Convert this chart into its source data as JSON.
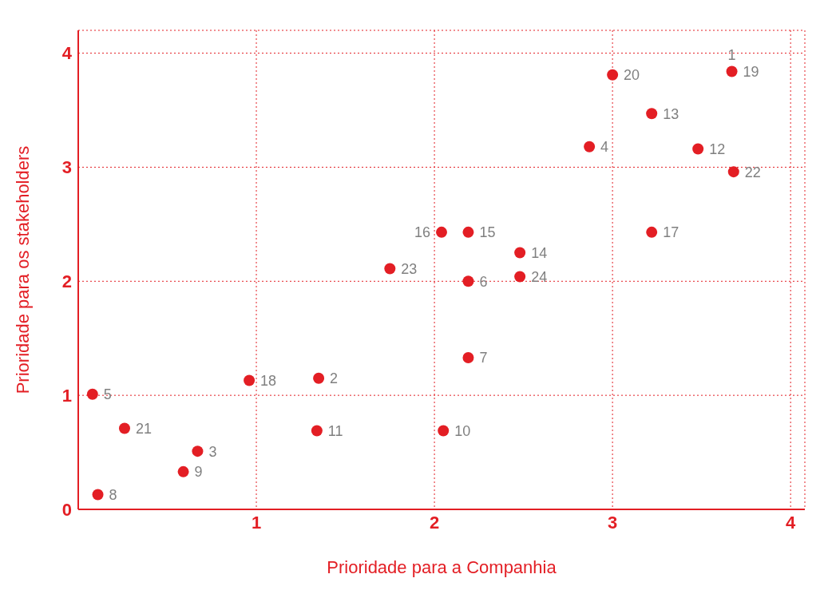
{
  "chart_data": {
    "type": "scatter",
    "xlabel": "Prioridade para a Companhia",
    "ylabel": "Prioridade para os stakeholders",
    "series": [
      {
        "color": "#e31e24",
        "x": [
          null,
          1.35,
          0.67,
          2.87,
          0.08,
          2.19,
          2.19,
          0.11,
          0.59,
          2.05,
          1.34,
          3.48,
          3.22,
          2.48,
          2.19,
          2.04,
          3.22,
          0.96,
          3.67,
          3.0,
          0.26,
          3.68,
          1.75,
          2.48
        ],
        "values": [
          null,
          1.15,
          0.51,
          3.18,
          1.01,
          2.0,
          1.33,
          0.13,
          0.33,
          0.69,
          0.69,
          3.16,
          3.47,
          2.25,
          2.43,
          2.43,
          2.43,
          1.13,
          3.84,
          3.81,
          0.71,
          2.96,
          2.11,
          2.04
        ]
      }
    ],
    "annotations": [
      {
        "text": "1",
        "x": 3.67,
        "y": 3.84
      },
      {
        "text": "2",
        "x": 1.35,
        "y": 1.15
      },
      {
        "text": "3",
        "x": 0.67,
        "y": 0.51
      },
      {
        "text": "4",
        "x": 2.87,
        "y": 3.18
      },
      {
        "text": "5",
        "x": 0.08,
        "y": 1.01
      },
      {
        "text": "6",
        "x": 2.19,
        "y": 2.0
      },
      {
        "text": "7",
        "x": 2.19,
        "y": 1.33
      },
      {
        "text": "8",
        "x": 0.11,
        "y": 0.13
      },
      {
        "text": "9",
        "x": 0.59,
        "y": 0.33
      },
      {
        "text": "10",
        "x": 2.05,
        "y": 0.69
      },
      {
        "text": "11",
        "x": 1.34,
        "y": 0.69
      },
      {
        "text": "12",
        "x": 3.48,
        "y": 3.16
      },
      {
        "text": "13",
        "x": 3.22,
        "y": 3.47
      },
      {
        "text": "14",
        "x": 2.48,
        "y": 2.25
      },
      {
        "text": "15",
        "x": 2.19,
        "y": 2.43
      },
      {
        "text": "16",
        "x": 2.04,
        "y": 2.43
      },
      {
        "text": "17",
        "x": 3.22,
        "y": 2.43
      },
      {
        "text": "18",
        "x": 0.96,
        "y": 1.13
      },
      {
        "text": "19",
        "x": 3.67,
        "y": 3.84
      },
      {
        "text": "20",
        "x": 3.0,
        "y": 3.81
      },
      {
        "text": "21",
        "x": 0.26,
        "y": 0.71
      },
      {
        "text": "22",
        "x": 3.68,
        "y": 2.96
      },
      {
        "text": "23",
        "x": 1.75,
        "y": 2.11
      },
      {
        "text": "24",
        "x": 2.48,
        "y": 2.04
      }
    ],
    "xlim": [
      0,
      4.08
    ],
    "ylim": [
      0,
      4.2
    ],
    "xticks": [
      {
        "value": 0,
        "label": null
      },
      1,
      2,
      3,
      4
    ],
    "yticks": [
      0,
      1,
      2,
      3,
      4
    ],
    "grid": true,
    "legend": false,
    "marker": "circle"
  }
}
